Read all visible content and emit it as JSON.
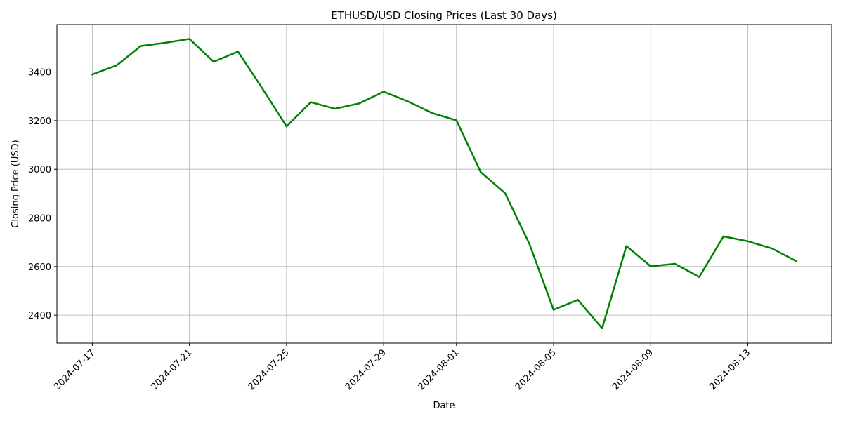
{
  "chart_data": {
    "type": "line",
    "title": "ETHUSD/USD Closing Prices (Last 30 Days)",
    "xlabel": "Date",
    "ylabel": "Closing Price (USD)",
    "grid": true,
    "xlim": [
      "2024-07-15T13:00",
      "2024-08-16T11:00"
    ],
    "ylim": [
      2285,
      3595
    ],
    "x_ticks": [
      "2024-07-17",
      "2024-07-21",
      "2024-07-25",
      "2024-07-29",
      "2024-08-01",
      "2024-08-05",
      "2024-08-09",
      "2024-08-13"
    ],
    "y_ticks": [
      2400,
      2600,
      2800,
      3000,
      3200,
      3400
    ],
    "series": [
      {
        "color": "#008000",
        "x": [
          "2024-07-17",
          "2024-07-18",
          "2024-07-19",
          "2024-07-20",
          "2024-07-21",
          "2024-07-22",
          "2024-07-23",
          "2024-07-24",
          "2024-07-25",
          "2024-07-26",
          "2024-07-27",
          "2024-07-28",
          "2024-07-29",
          "2024-07-30",
          "2024-07-31",
          "2024-08-01",
          "2024-08-02",
          "2024-08-03",
          "2024-08-04",
          "2024-08-05",
          "2024-08-06",
          "2024-08-07",
          "2024-08-08",
          "2024-08-09",
          "2024-08-10",
          "2024-08-11",
          "2024-08-12",
          "2024-08-13",
          "2024-08-14",
          "2024-08-15"
        ],
        "values": [
          3390,
          3427,
          3507,
          3520,
          3536,
          3442,
          3484,
          3333,
          3176,
          3276,
          3249,
          3271,
          3319,
          3279,
          3231,
          3201,
          2988,
          2902,
          2694,
          2422,
          2463,
          2346,
          2684,
          2601,
          2611,
          2557,
          2724,
          2704,
          2674,
          2622
        ]
      }
    ]
  }
}
